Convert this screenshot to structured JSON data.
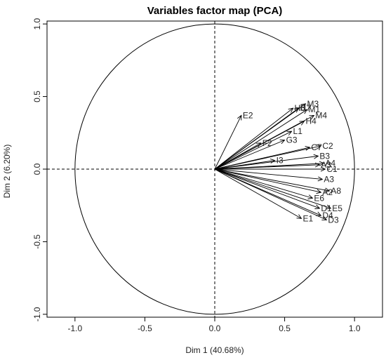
{
  "chart_data": {
    "type": "scatter",
    "title": "Variables factor map (PCA)",
    "xlabel": "Dim 1 (40.68%)",
    "ylabel": "Dim 2 (6.20%)",
    "xlim": [
      -1.2,
      1.2
    ],
    "ylim": [
      -1.02,
      1.02
    ],
    "xticks": [
      "-1.0",
      "-0.5",
      "0.0",
      "0.5",
      "1.0"
    ],
    "yticks": [
      "-1.0",
      "-0.5",
      "0.0",
      "0.5",
      "1.0"
    ],
    "xtick_values": [
      -1.0,
      -0.5,
      0.0,
      0.5,
      1.0
    ],
    "ytick_values": [
      -1.0,
      -0.5,
      0.0,
      0.5,
      1.0
    ],
    "grid": false,
    "circle_radius": 1.0,
    "variables": [
      {
        "name": "E2",
        "x": 0.19,
        "y": 0.37
      },
      {
        "name": "M3",
        "x": 0.65,
        "y": 0.45
      },
      {
        "name": "H6",
        "x": 0.56,
        "y": 0.42
      },
      {
        "name": "H7",
        "x": 0.6,
        "y": 0.42
      },
      {
        "name": "M1",
        "x": 0.66,
        "y": 0.41
      },
      {
        "name": "M4",
        "x": 0.71,
        "y": 0.37
      },
      {
        "name": "H4",
        "x": 0.64,
        "y": 0.33
      },
      {
        "name": "L1",
        "x": 0.55,
        "y": 0.26
      },
      {
        "name": "G3",
        "x": 0.5,
        "y": 0.2
      },
      {
        "name": "F2",
        "x": 0.33,
        "y": 0.18
      },
      {
        "name": "C2",
        "x": 0.76,
        "y": 0.16
      },
      {
        "name": "C7",
        "x": 0.68,
        "y": 0.15
      },
      {
        "name": "B3",
        "x": 0.74,
        "y": 0.09
      },
      {
        "name": "I3",
        "x": 0.43,
        "y": 0.06
      },
      {
        "name": "A3",
        "x": 0.75,
        "y": 0.03
      },
      {
        "name": "A4",
        "x": 0.78,
        "y": 0.04
      },
      {
        "name": "C1",
        "x": 0.79,
        "y": 0.0
      },
      {
        "name": "A3",
        "x": 0.77,
        "y": -0.07
      },
      {
        "name": "A8",
        "x": 0.82,
        "y": -0.15
      },
      {
        "name": "A2",
        "x": 0.76,
        "y": -0.16
      },
      {
        "name": "E6",
        "x": 0.7,
        "y": -0.2
      },
      {
        "name": "D1",
        "x": 0.75,
        "y": -0.27
      },
      {
        "name": "E5",
        "x": 0.83,
        "y": -0.27
      },
      {
        "name": "D4",
        "x": 0.76,
        "y": -0.32
      },
      {
        "name": "D3",
        "x": 0.8,
        "y": -0.35
      },
      {
        "name": "E1",
        "x": 0.62,
        "y": -0.34
      }
    ]
  }
}
